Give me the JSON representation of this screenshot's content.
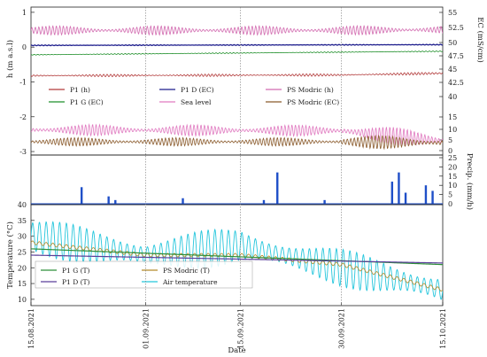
{
  "chart_data": [
    {
      "type": "line",
      "xlim": [
        "15.08.2021",
        "15.10.2021"
      ],
      "ylabel_left": "h (m a.s.l)",
      "ylabel_right": "EC (mS/cm)",
      "yticks_left": [
        "1",
        "0",
        "-1",
        "-2",
        "-3"
      ],
      "yticks_right": [
        "55",
        "52.5",
        "50",
        "47.5",
        "45",
        "42.5",
        "40",
        "15",
        "10",
        "5",
        "0"
      ],
      "legend_position": "center-left",
      "legend": [
        "P1 (h)",
        "P1 D (EC)",
        "PS Modric (h)",
        "P1 G (EC)",
        "Sea level",
        "PS Modric (EC)"
      ],
      "series": [
        {
          "name": "PS Modric (h)",
          "color": "#d26bb0",
          "axis": "left",
          "base": 0.48,
          "tidal_amplitude": 0.13,
          "x": [
            "15.08.2021",
            "30.09.2021",
            "15.10.2021"
          ],
          "y": [
            0.48,
            0.48,
            0.5
          ]
        },
        {
          "name": "P1 D (EC)",
          "color": "#1c1c8c",
          "axis": "left",
          "base": 0.05,
          "tidal_amplitude": 0.01,
          "x": [
            "15.08.2021",
            "15.10.2021"
          ],
          "y": [
            0.05,
            0.07
          ]
        },
        {
          "name": "P1 G (EC)",
          "color": "#1f8f2a",
          "axis": "left",
          "base": -0.22,
          "tidal_amplitude": 0.012,
          "x": [
            "15.08.2021",
            "15.10.2021"
          ],
          "y": [
            -0.22,
            -0.12
          ]
        },
        {
          "name": "P1 (h)",
          "color": "#b23a3a",
          "axis": "left",
          "base": -0.82,
          "tidal_amplitude": 0.035,
          "x": [
            "15.08.2021",
            "30.09.2021",
            "15.10.2021"
          ],
          "y": [
            -0.82,
            -0.8,
            -0.75
          ]
        },
        {
          "name": "Sea level",
          "color": "#e07ac0",
          "axis": "left",
          "base": -2.38,
          "tidal_amplitude": 0.16,
          "x": [
            "15.08.2021",
            "30.09.2021",
            "15.10.2021"
          ],
          "y": [
            -2.38,
            -2.4,
            -2.7
          ]
        },
        {
          "name": "PS Modric (EC)",
          "color": "#8a5a2b",
          "axis": "left",
          "base": -2.72,
          "tidal_amplitude": 0.12,
          "x": [
            "15.08.2021",
            "30.09.2021",
            "15.10.2021"
          ],
          "y": [
            -2.72,
            -2.72,
            -2.75
          ]
        }
      ]
    },
    {
      "type": "bar",
      "ylabel_right": "Precip. (mm/h)",
      "yticks_right": [
        "25",
        "20",
        "15",
        "10",
        "5",
        "0"
      ],
      "ylim": [
        0,
        25
      ],
      "color": "#1f4fc8",
      "x": [
        "22.08.2021",
        "26.08.2021",
        "27.08.2021",
        "06.09.2021",
        "18.09.2021",
        "20.09.2021",
        "27.09.2021",
        "07.10.2021",
        "08.10.2021",
        "09.10.2021",
        "12.10.2021",
        "13.10.2021"
      ],
      "values": [
        9,
        4,
        2,
        3,
        2,
        17,
        2,
        12,
        17,
        6,
        10,
        7
      ]
    },
    {
      "type": "line",
      "ylabel": "Temperature (°C)",
      "xlabel": "Date",
      "yticks": [
        "40",
        "35",
        "30",
        "25",
        "20",
        "15",
        "10"
      ],
      "ylim": [
        8,
        40
      ],
      "xticks": [
        "15.08.2021",
        "01.09.2021",
        "15.09.2021",
        "30.09.2021",
        "15.10.2021"
      ],
      "legend_position": "lower-left",
      "legend": [
        "P1 G (T)",
        "PS Modric (T)",
        "P1 D (T)",
        "Air temperature"
      ],
      "series": [
        {
          "name": "Air temperature",
          "color": "#25c6dc",
          "x": [
            "15.08.2021",
            "01.09.2021",
            "15.09.2021",
            "30.09.2021",
            "15.10.2021"
          ],
          "y": [
            30,
            24,
            27,
            20,
            13
          ],
          "daily_amplitude": 6
        },
        {
          "name": "PS Modric (T)",
          "color": "#b58a2a",
          "x": [
            "15.08.2021",
            "01.09.2021",
            "15.09.2021",
            "30.09.2021",
            "15.10.2021"
          ],
          "y": [
            28,
            24,
            24,
            21,
            13
          ]
        },
        {
          "name": "P1 G (T)",
          "color": "#2f8f3a",
          "x": [
            "15.08.2021",
            "15.10.2021"
          ],
          "y": [
            26,
            21
          ]
        },
        {
          "name": "P1 D (T)",
          "color": "#5a3f9a",
          "x": [
            "15.08.2021",
            "15.10.2021"
          ],
          "y": [
            24,
            21.5
          ]
        }
      ]
    }
  ]
}
